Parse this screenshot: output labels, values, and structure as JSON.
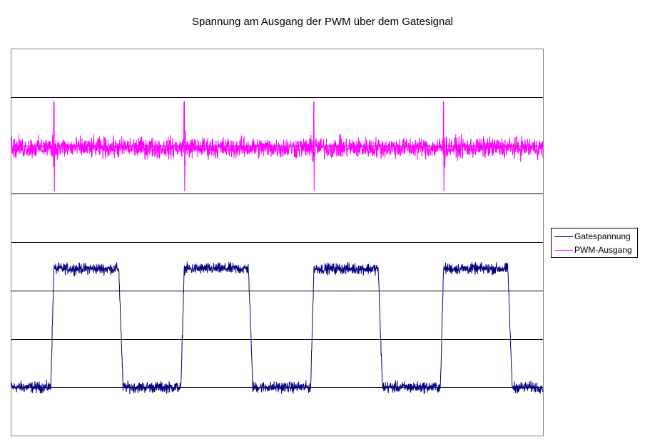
{
  "chart_data": {
    "type": "line",
    "title": "Spannung am Ausgang der PWM über dem Gatesignal",
    "xlabel": "",
    "ylabel": "",
    "xlim": [
      0,
      1000
    ],
    "ylim": [
      0,
      8
    ],
    "grid": "horizontal",
    "legend": "right",
    "series": [
      {
        "name": "Gatespannung",
        "color": "#000080",
        "low": 1,
        "high": 3.45,
        "noise": 0.08,
        "pulses": [
          [
            80,
            202
          ],
          [
            325,
            446
          ],
          [
            569,
            690
          ],
          [
            813,
            934
          ]
        ]
      },
      {
        "name": "PWM-Ausgang",
        "color": "#ff00ff",
        "base": 5.95,
        "noise": 0.15,
        "spikes": [
          80,
          325,
          569,
          813
        ]
      }
    ]
  }
}
